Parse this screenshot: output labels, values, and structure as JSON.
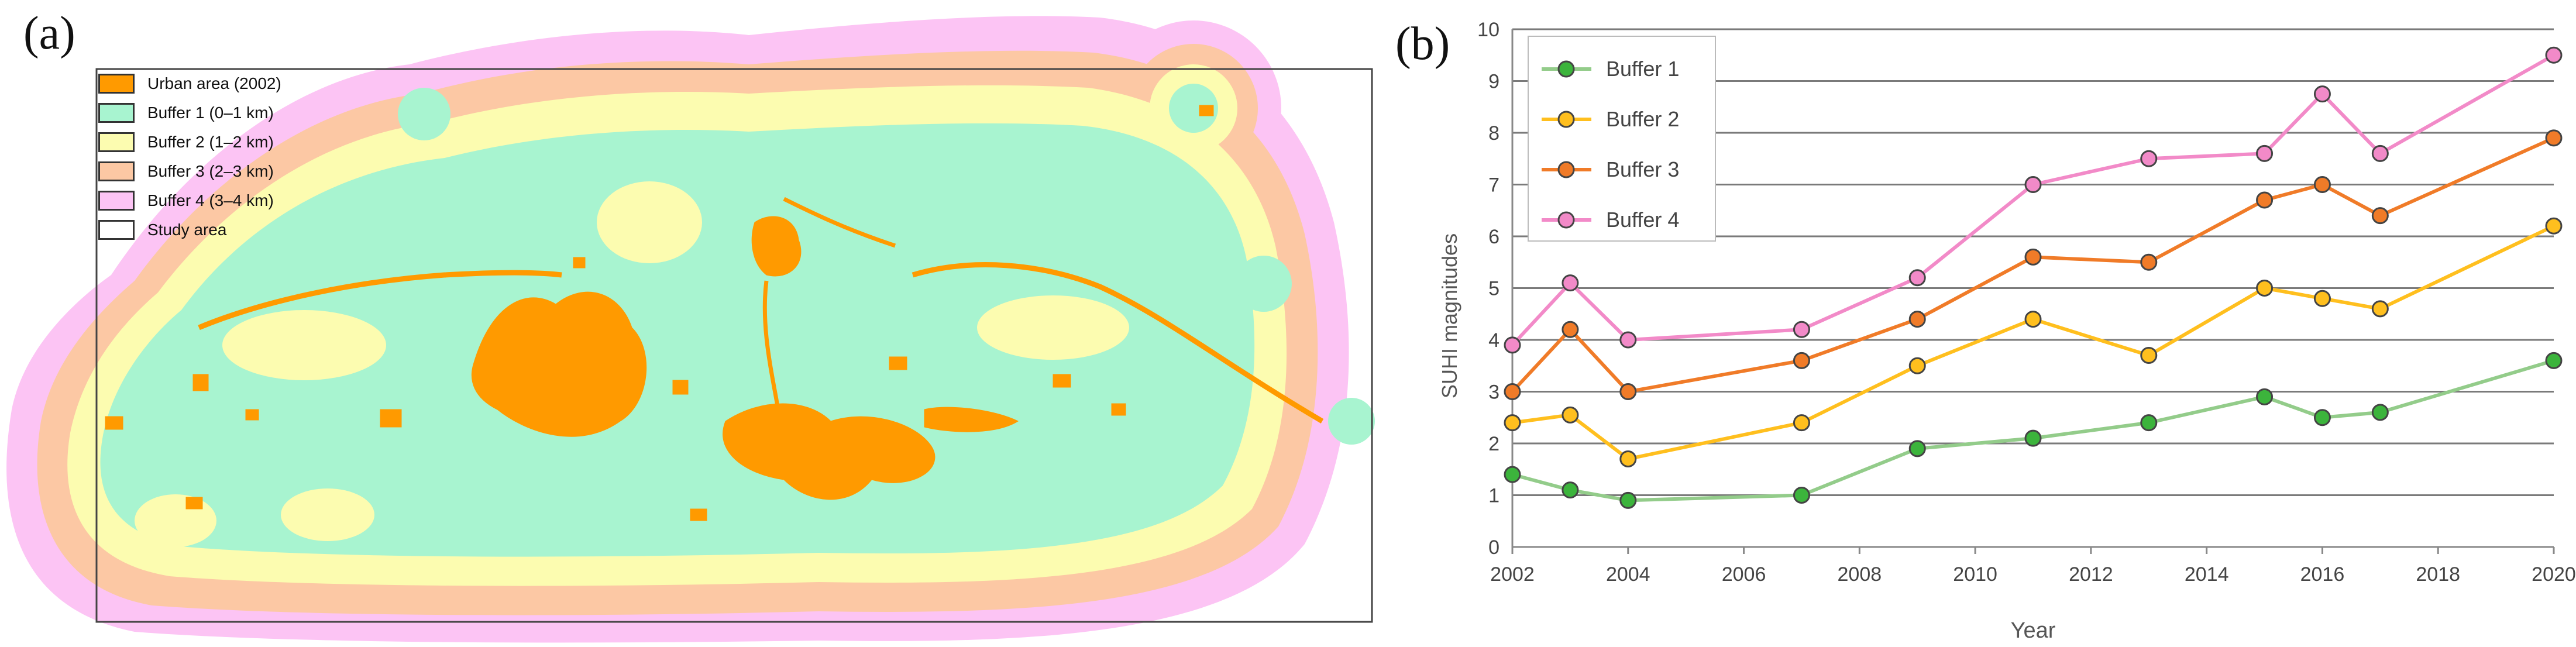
{
  "panel_labels": {
    "a": "(a)",
    "b": "(b)"
  },
  "map": {
    "legend": [
      {
        "label": "Urban area (2002)",
        "color": "#ff9a00"
      },
      {
        "label": "Buffer 1 (0–1 km)",
        "color": "#a8f4d0"
      },
      {
        "label": "Buffer 2 (1–2 km)",
        "color": "#fcfcb0"
      },
      {
        "label": "Buffer 3 (2–3 km)",
        "color": "#fcc8a4"
      },
      {
        "label": "Buffer 4 (3–4 km)",
        "color": "#fcc4f4"
      },
      {
        "label": "Study area",
        "color": "#ffffff"
      }
    ]
  },
  "chart_data": {
    "type": "line",
    "title": "",
    "xlabel": "Year",
    "ylabel": "SUHI magnitudes",
    "xlim": [
      2002,
      2020
    ],
    "ylim": [
      0,
      10
    ],
    "xticks": [
      2002,
      2004,
      2006,
      2008,
      2010,
      2012,
      2014,
      2016,
      2018,
      2020
    ],
    "yticks": [
      0,
      1,
      2,
      3,
      4,
      5,
      6,
      7,
      8,
      9,
      10
    ],
    "grid": "horizontal",
    "legend_position": "top-left",
    "x": [
      2002,
      2003,
      2004,
      2007,
      2009,
      2011,
      2013,
      2015,
      2016,
      2017,
      2020
    ],
    "series": [
      {
        "name": "Buffer 1",
        "color": "#93cc8a",
        "marker": "#3cb43c",
        "values": [
          1.4,
          1.1,
          0.9,
          1.0,
          1.9,
          2.1,
          2.4,
          2.9,
          2.5,
          2.6,
          3.6
        ]
      },
      {
        "name": "Buffer 2",
        "color": "#ffbf1e",
        "marker": "#ffbf1e",
        "values": [
          2.4,
          2.55,
          1.7,
          2.4,
          3.5,
          4.4,
          3.7,
          5.0,
          4.8,
          4.6,
          6.2
        ]
      },
      {
        "name": "Buffer 3",
        "color": "#f07b28",
        "marker": "#f07b28",
        "values": [
          3.0,
          4.2,
          3.0,
          3.6,
          4.4,
          5.6,
          5.5,
          6.7,
          7.0,
          6.4,
          7.9
        ]
      },
      {
        "name": "Buffer 4",
        "color": "#f28ac8",
        "marker": "#f28ac8",
        "values": [
          3.9,
          5.1,
          4.0,
          4.2,
          5.2,
          7.0,
          7.5,
          7.6,
          8.75,
          7.6,
          9.5
        ]
      }
    ]
  }
}
